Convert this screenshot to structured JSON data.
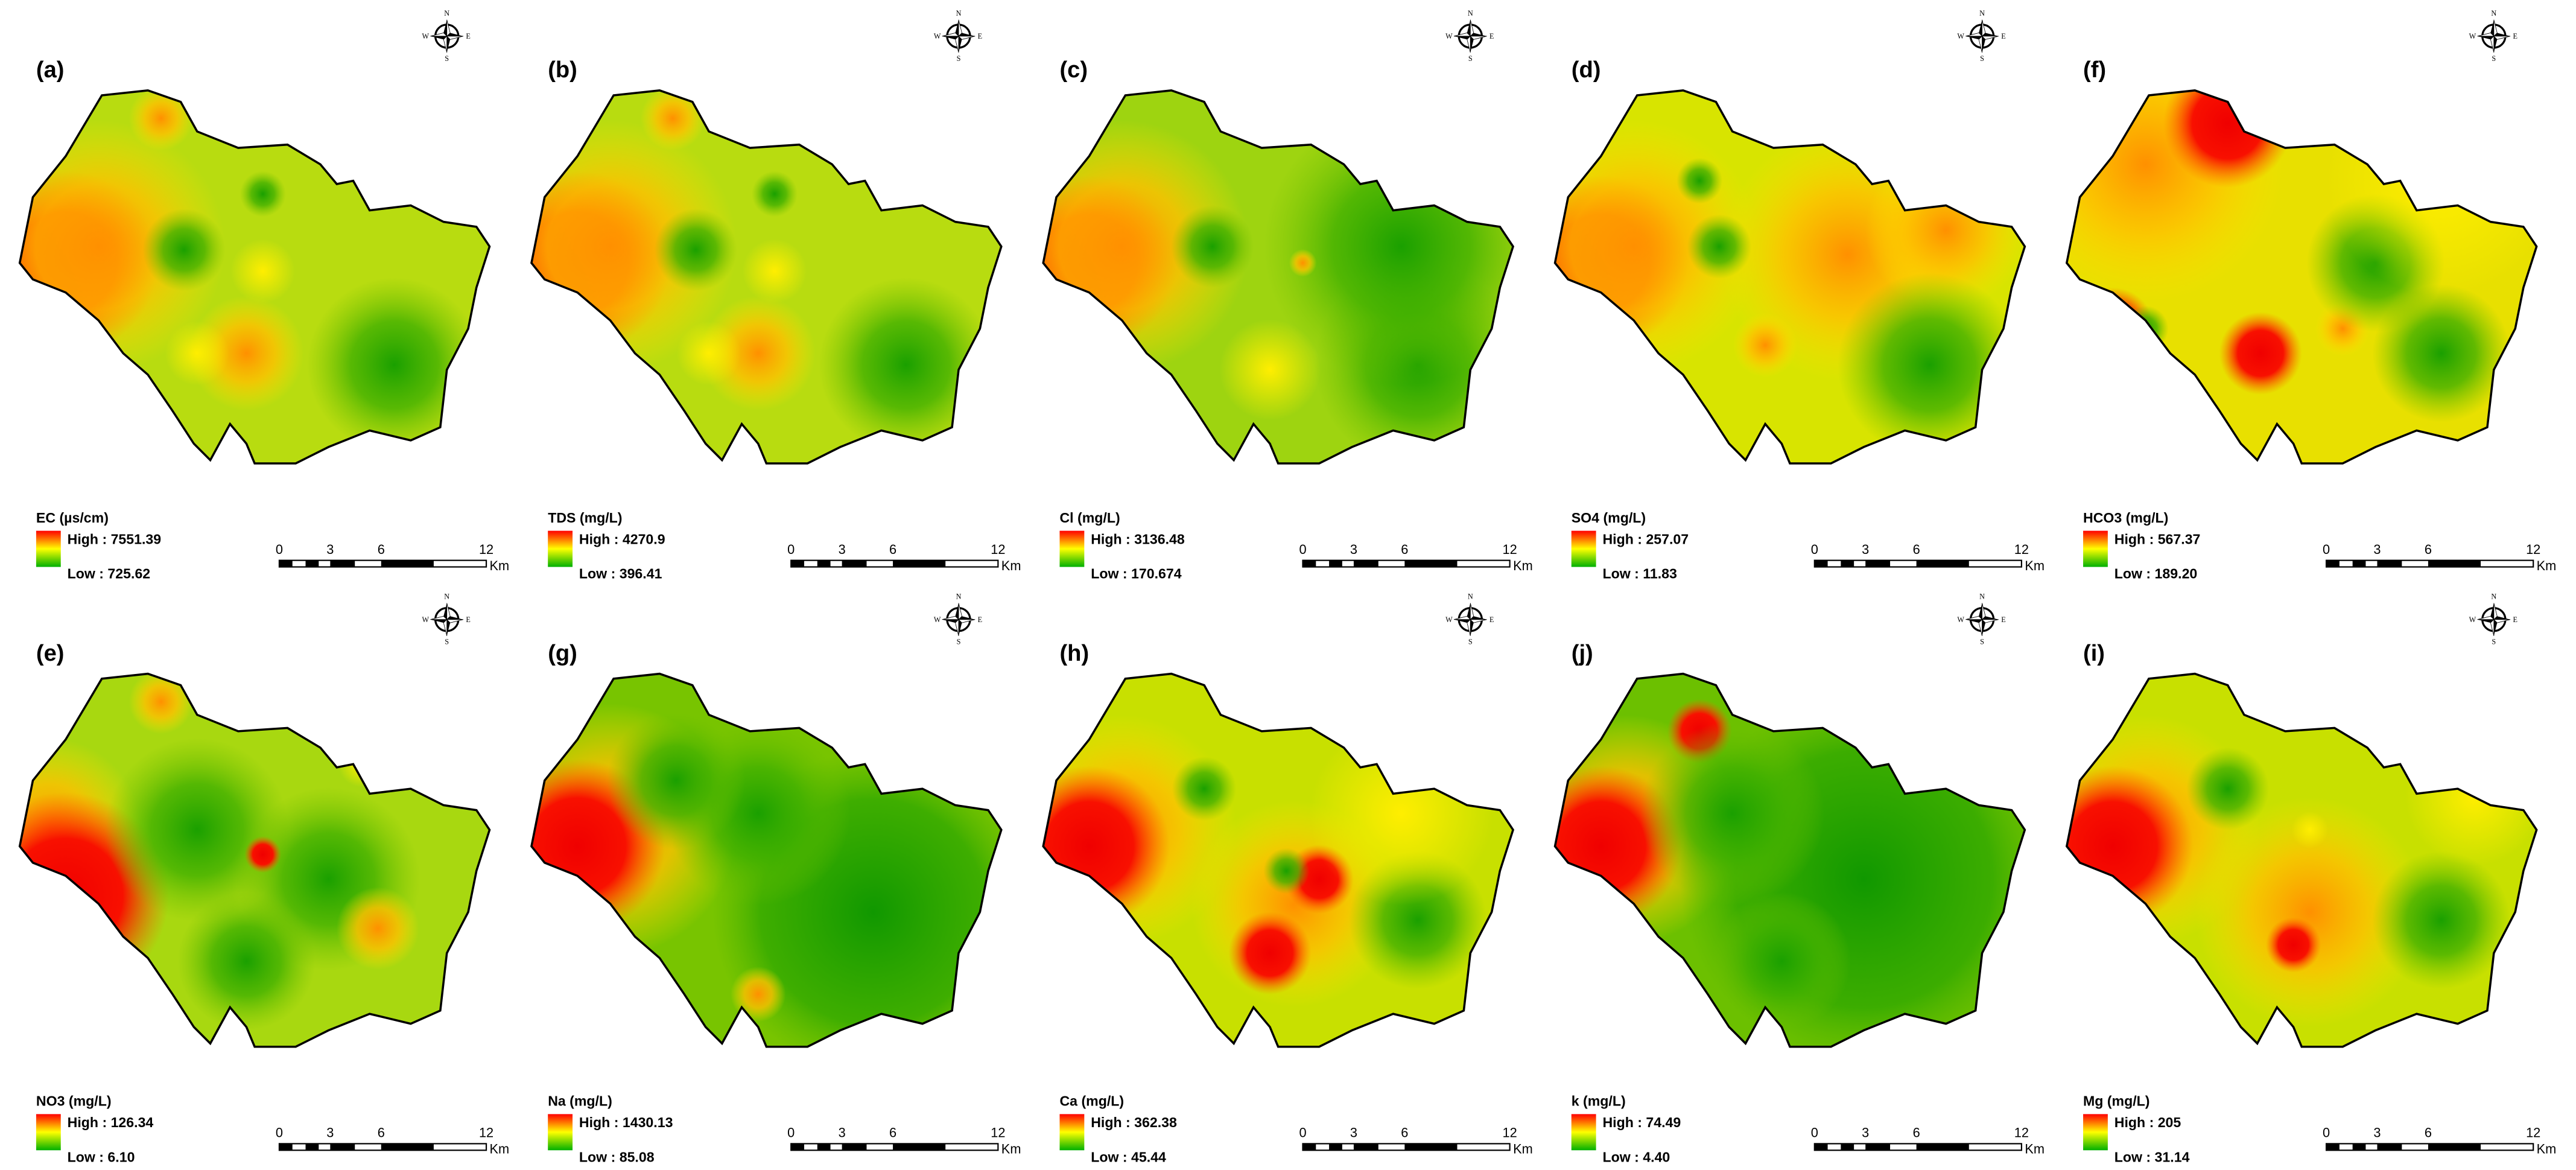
{
  "panels": [
    {
      "label": "(a)",
      "legend_title": "EC (µs/cm)",
      "high": "High : 7551.39",
      "low": "Low : 725.62"
    },
    {
      "label": "(b)",
      "legend_title": "TDS (mg/L)",
      "high": "High : 4270.9",
      "low": "Low : 396.41"
    },
    {
      "label": "(c)",
      "legend_title": "Cl (mg/L)",
      "high": "High : 3136.48",
      "low": "Low : 170.674"
    },
    {
      "label": "(d)",
      "legend_title": "SO4 (mg/L)",
      "high": "High : 257.07",
      "low": "Low : 11.83"
    },
    {
      "label": "(f)",
      "legend_title": "HCO3 (mg/L)",
      "high": "High : 567.37",
      "low": "Low : 189.20"
    },
    {
      "label": "(e)",
      "legend_title": "NO3 (mg/L)",
      "high": "High : 126.34",
      "low": "Low : 6.10"
    },
    {
      "label": "(g)",
      "legend_title": "Na (mg/L)",
      "high": "High : 1430.13",
      "low": "Low : 85.08"
    },
    {
      "label": "(h)",
      "legend_title": "Ca (mg/L)",
      "high": "High : 362.38",
      "low": "Low : 45.44"
    },
    {
      "label": "(j)",
      "legend_title": "k (mg/L)",
      "high": "High : 74.49",
      "low": "Low : 4.40"
    },
    {
      "label": "(i)",
      "legend_title": "Mg (mg/L)",
      "high": "High : 205",
      "low": "Low : 31.14"
    }
  ],
  "compass": {
    "n": "N",
    "s": "S",
    "e": "E",
    "w": "W"
  },
  "scale_bar": {
    "ticks": [
      "0",
      "3",
      "6",
      "12"
    ],
    "unit": "Km"
  }
}
